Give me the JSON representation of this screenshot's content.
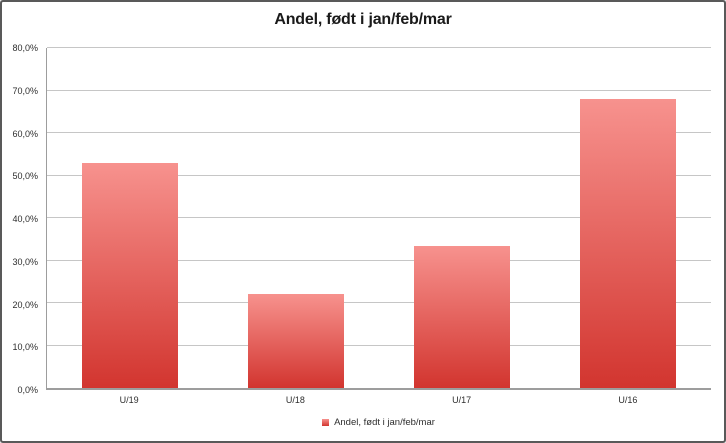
{
  "chart_data": {
    "type": "bar",
    "title": "Andel, født i jan/feb/mar",
    "categories": [
      "U/19",
      "U/18",
      "U/17",
      "U/16"
    ],
    "series": [
      {
        "name": "Andel, født i jan/feb/mar",
        "values": [
          53.0,
          22.2,
          33.3,
          68.0
        ]
      }
    ],
    "value_unit": "%",
    "decimal_separator": ",",
    "xlabel": "",
    "ylabel": "",
    "ylim": [
      0,
      80
    ],
    "ytick_step": 10,
    "yticks": [
      {
        "value": 80,
        "label": "80,0%"
      },
      {
        "value": 70,
        "label": "70,0%"
      },
      {
        "value": 60,
        "label": "60,0%"
      },
      {
        "value": 50,
        "label": "50,0%"
      },
      {
        "value": 40,
        "label": "40,0%"
      },
      {
        "value": 30,
        "label": "30,0%"
      },
      {
        "value": 20,
        "label": "20,0%"
      },
      {
        "value": 10,
        "label": "10,0%"
      },
      {
        "value": 0,
        "label": "0,0%"
      }
    ],
    "grid": true,
    "legend": {
      "position": "bottom",
      "label": "Andel, født i jan/feb/mar"
    },
    "colors": {
      "bar_gradient_top": "#f7928e",
      "bar_gradient_bottom": "#d2352f",
      "gridline": "#c6c6c6",
      "axis_line": "#9d9d9d",
      "tick_text": "#2e2e2e",
      "title_text": "#1a1a1a",
      "frame_border": "#595959",
      "background": "#ffffff"
    }
  }
}
